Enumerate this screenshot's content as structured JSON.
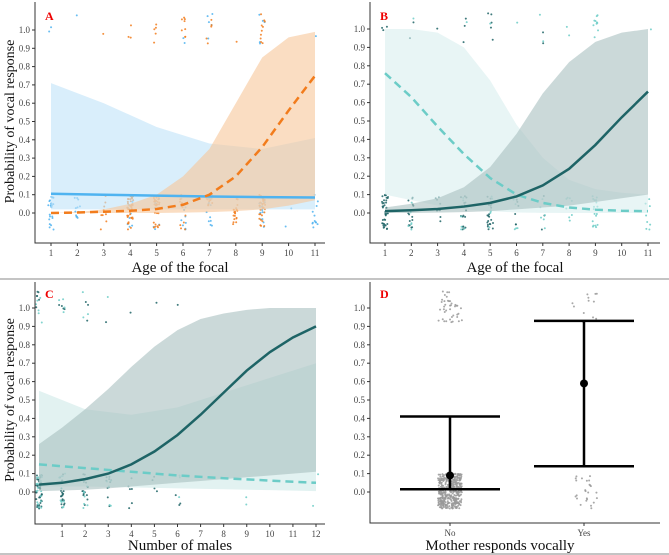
{
  "chart_data": [
    {
      "id": "A",
      "type": "line",
      "panel_label": "A",
      "xlabel": "Age of the focal",
      "ylabel": "Probability of vocal response",
      "xlim": [
        1,
        11
      ],
      "xticks": [
        1,
        2,
        3,
        4,
        5,
        6,
        7,
        8,
        9,
        10,
        11
      ],
      "ylim": [
        0,
        1
      ],
      "yticks": [
        "0.0",
        "0.1",
        "0.2",
        "0.3",
        "0.4",
        "0.5",
        "0.6",
        "0.7",
        "0.8",
        "0.9",
        "1.0"
      ],
      "series": [
        {
          "name": "blue",
          "color": "#4fb3f0",
          "fill": "#bfe2f8",
          "dash": false,
          "x": [
            1,
            3,
            5,
            7,
            9,
            11
          ],
          "y": [
            0.105,
            0.1,
            0.095,
            0.09,
            0.087,
            0.085
          ],
          "upper": [
            0.71,
            0.6,
            0.47,
            0.38,
            0.35,
            0.41
          ],
          "lower": [
            0.02,
            0.02,
            0.02,
            0.02,
            0.02,
            0.02
          ]
        },
        {
          "name": "orange",
          "color": "#f27c1c",
          "fill": "#f7c79a",
          "dash": true,
          "x": [
            1,
            2,
            3,
            4,
            5,
            6,
            7,
            8,
            9,
            10,
            11
          ],
          "y": [
            0,
            0.003,
            0.007,
            0.012,
            0.022,
            0.045,
            0.1,
            0.2,
            0.36,
            0.56,
            0.75
          ],
          "upper": [
            0,
            0.005,
            0.02,
            0.05,
            0.1,
            0.2,
            0.35,
            0.6,
            0.85,
            0.96,
            0.99
          ],
          "lower": [
            0,
            0,
            0,
            0,
            0,
            0.002,
            0.005,
            0.01,
            0.02,
            0.04,
            0.07
          ]
        }
      ],
      "points": [
        {
          "color": "#4fb3f0",
          "groups": [
            [
              1,
              22,
              2
            ],
            [
              2,
              12,
              1
            ],
            [
              4,
              10,
              0
            ],
            [
              5,
              8,
              0
            ],
            [
              6,
              10,
              2
            ],
            [
              7,
              14,
              5
            ],
            [
              9,
              16,
              5
            ],
            [
              10,
              2,
              0
            ],
            [
              11,
              12,
              1
            ]
          ]
        },
        {
          "color": "#f27c1c",
          "groups": [
            [
              3,
              10,
              1
            ],
            [
              4,
              40,
              3
            ],
            [
              5,
              30,
              5
            ],
            [
              6,
              10,
              8
            ],
            [
              7,
              6,
              5
            ],
            [
              8,
              20,
              1
            ],
            [
              9,
              30,
              10
            ]
          ]
        }
      ]
    },
    {
      "id": "B",
      "type": "line",
      "panel_label": "B",
      "xlabel": "Age of the focal",
      "ylabel": "",
      "xlim": [
        1,
        11
      ],
      "xticks": [
        1,
        2,
        3,
        4,
        5,
        6,
        7,
        8,
        9,
        10,
        11
      ],
      "ylim": [
        0,
        1
      ],
      "yticks": [
        "0.0",
        "0.1",
        "0.2",
        "0.3",
        "0.4",
        "0.5",
        "0.6",
        "0.7",
        "0.8",
        "0.9",
        "1.0"
      ],
      "series": [
        {
          "name": "light",
          "color": "#6cccc7",
          "fill": "#d8efee",
          "dash": true,
          "x": [
            1,
            2,
            3,
            4,
            5,
            6,
            7,
            8,
            9,
            10,
            11
          ],
          "y": [
            0.76,
            0.63,
            0.47,
            0.32,
            0.19,
            0.1,
            0.055,
            0.03,
            0.018,
            0.012,
            0.01
          ],
          "upper": [
            1,
            1,
            0.98,
            0.9,
            0.72,
            0.48,
            0.3,
            0.18,
            0.13,
            0.11,
            0.1
          ],
          "lower": [
            0.1,
            0.07,
            0.04,
            0.02,
            0.01,
            0.003,
            0.001,
            0,
            0,
            0,
            0
          ]
        },
        {
          "name": "dark",
          "color": "#1e6466",
          "fill": "#a9c0bf",
          "dash": false,
          "x": [
            1,
            2,
            3,
            4,
            5,
            6,
            7,
            8,
            9,
            10,
            11
          ],
          "y": [
            0.01,
            0.015,
            0.022,
            0.035,
            0.055,
            0.09,
            0.15,
            0.24,
            0.37,
            0.52,
            0.66
          ],
          "upper": [
            0.03,
            0.05,
            0.08,
            0.14,
            0.25,
            0.43,
            0.65,
            0.82,
            0.93,
            0.98,
            1
          ],
          "lower": [
            0,
            0,
            0.002,
            0.005,
            0.01,
            0.02,
            0.03,
            0.04,
            0.06,
            0.08,
            0.1
          ]
        }
      ],
      "points": [
        {
          "color": "#1e6466",
          "groups": [
            [
              1,
              40,
              3
            ],
            [
              2,
              14,
              2
            ],
            [
              3,
              10,
              1
            ],
            [
              4,
              16,
              3
            ],
            [
              5,
              20,
              5
            ],
            [
              6,
              6,
              0
            ],
            [
              7,
              4,
              2
            ]
          ]
        },
        {
          "color": "#6cccc7",
          "groups": [
            [
              2,
              6,
              1
            ],
            [
              4,
              8,
              1
            ],
            [
              5,
              6,
              1
            ],
            [
              6,
              6,
              1
            ],
            [
              7,
              6,
              2
            ],
            [
              8,
              8,
              2
            ],
            [
              9,
              18,
              10
            ],
            [
              11,
              8,
              1
            ]
          ]
        }
      ]
    },
    {
      "id": "C",
      "type": "line",
      "panel_label": "C",
      "xlabel": "Number of males",
      "ylabel": "Probability of vocal response",
      "xlim": [
        0,
        12
      ],
      "xticks": [
        1,
        2,
        3,
        4,
        5,
        6,
        7,
        8,
        9,
        10,
        11,
        12
      ],
      "ylim": [
        0,
        1
      ],
      "yticks": [
        "0.0",
        "0.1",
        "0.2",
        "0.3",
        "0.4",
        "0.5",
        "0.6",
        "0.7",
        "0.8",
        "0.9",
        "1.0"
      ],
      "series": [
        {
          "name": "light",
          "color": "#6cccc7",
          "fill": "#cfe9e8",
          "dash": true,
          "x": [
            0,
            2,
            4,
            6,
            8,
            10,
            12
          ],
          "y": [
            0.15,
            0.13,
            0.11,
            0.09,
            0.075,
            0.062,
            0.05
          ],
          "upper": [
            0.55,
            0.45,
            0.42,
            0.46,
            0.54,
            0.62,
            0.7
          ],
          "lower": [
            0.03,
            0.03,
            0.025,
            0.02,
            0.015,
            0.01,
            0.005
          ]
        },
        {
          "name": "dark",
          "color": "#1e6466",
          "fill": "#a9c0bf",
          "dash": false,
          "x": [
            0,
            1,
            2,
            3,
            4,
            5,
            6,
            7,
            8,
            9,
            10,
            11,
            12
          ],
          "y": [
            0.04,
            0.05,
            0.07,
            0.1,
            0.15,
            0.22,
            0.31,
            0.42,
            0.54,
            0.66,
            0.76,
            0.84,
            0.9
          ],
          "upper": [
            0.26,
            0.35,
            0.45,
            0.56,
            0.68,
            0.79,
            0.88,
            0.94,
            0.97,
            0.99,
            1,
            1,
            1
          ],
          "lower": [
            0.005,
            0.008,
            0.012,
            0.02,
            0.03,
            0.04,
            0.05,
            0.06,
            0.07,
            0.08,
            0.09,
            0.1,
            0.11
          ]
        }
      ],
      "points": [
        {
          "color": "#1e6466",
          "groups": [
            [
              0,
              40,
              6
            ],
            [
              1,
              20,
              4
            ],
            [
              2,
              14,
              3
            ],
            [
              3,
              10,
              1
            ],
            [
              4,
              6,
              1
            ],
            [
              5,
              4,
              1
            ],
            [
              6,
              3,
              1
            ]
          ]
        },
        {
          "color": "#6cccc7",
          "groups": [
            [
              0,
              20,
              6
            ],
            [
              1,
              12,
              4
            ],
            [
              2,
              8,
              3
            ],
            [
              3,
              6,
              1
            ],
            [
              6,
              3,
              0
            ],
            [
              9,
              2,
              0
            ],
            [
              12,
              2,
              0
            ]
          ]
        }
      ]
    },
    {
      "id": "D",
      "type": "errorbar",
      "panel_label": "D",
      "xlabel": "Mother responds vocally",
      "ylabel": "",
      "categories": [
        "No",
        "Yes"
      ],
      "values": [
        0.09,
        0.59
      ],
      "ci_lower": [
        0.015,
        0.14
      ],
      "ci_upper": [
        0.41,
        0.93
      ],
      "ylim": [
        0,
        1
      ],
      "yticks": [
        "0.0",
        "0.1",
        "0.2",
        "0.3",
        "0.4",
        "0.5",
        "0.6",
        "0.7",
        "0.8",
        "0.9",
        "1.0"
      ],
      "points": [
        {
          "color": "#999",
          "groups": [
            [
              0,
              400,
              40
            ],
            [
              1,
              25,
              12
            ]
          ]
        }
      ]
    }
  ]
}
